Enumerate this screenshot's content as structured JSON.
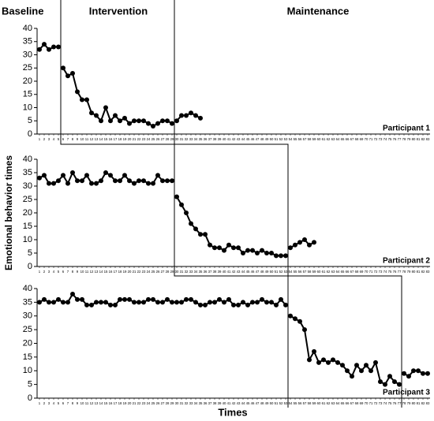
{
  "phases": [
    "Baseline",
    "Intervention",
    "Maintenance"
  ],
  "ylabel": "Emotional behavior times",
  "xlabel": "Times",
  "chart_data": [
    {
      "type": "line",
      "label": "Participant 1",
      "color": "#000000",
      "ylim": [
        0,
        40
      ],
      "yticks": [
        0,
        5,
        10,
        15,
        20,
        25,
        30,
        35,
        40
      ],
      "xlim": [
        0.5,
        83.5
      ],
      "xticks": [
        1,
        2,
        3,
        4,
        5,
        6,
        7,
        8,
        9,
        10,
        11,
        12,
        13,
        14,
        15,
        16,
        17,
        18,
        19,
        20,
        21,
        22,
        23,
        24,
        25,
        26,
        27,
        28,
        29,
        30,
        31,
        32,
        33,
        34,
        35,
        36,
        37,
        38,
        39,
        40,
        41,
        42,
        43,
        44,
        45,
        46,
        47,
        48,
        49,
        50,
        51,
        52,
        53,
        54,
        55,
        56,
        57,
        58,
        59,
        60,
        61,
        62,
        63,
        64,
        65,
        66,
        67,
        68,
        69,
        70,
        71,
        72,
        73,
        74,
        75,
        76,
        77,
        78,
        79,
        80,
        81,
        82,
        83
      ],
      "series": [
        {
          "x": [
            1,
            2,
            3,
            4,
            5
          ],
          "values": [
            32,
            34,
            32,
            33,
            33
          ]
        },
        {
          "x": [
            6,
            7,
            8,
            9,
            10,
            11,
            12,
            13,
            14,
            15,
            16,
            17,
            18,
            19,
            20,
            21,
            22,
            23,
            24,
            25,
            26,
            27,
            28,
            29
          ],
          "values": [
            25,
            22,
            23,
            16,
            13,
            13,
            8,
            7,
            5,
            10,
            5,
            7,
            5,
            6,
            4,
            5,
            5,
            5,
            4,
            3,
            4,
            5,
            5,
            4
          ]
        },
        {
          "x": [
            30,
            31,
            32,
            33,
            34,
            35
          ],
          "values": [
            5,
            7,
            7,
            8,
            7,
            6
          ]
        }
      ]
    },
    {
      "type": "line",
      "label": "Participant 2",
      "color": "#000000",
      "ylim": [
        0,
        40
      ],
      "yticks": [
        0,
        5,
        10,
        15,
        20,
        25,
        30,
        35,
        40
      ],
      "xlim": [
        0.5,
        83.5
      ],
      "xticks": [
        1,
        2,
        3,
        4,
        5,
        6,
        7,
        8,
        9,
        10,
        11,
        12,
        13,
        14,
        15,
        16,
        17,
        18,
        19,
        20,
        21,
        22,
        23,
        24,
        25,
        26,
        27,
        28,
        29,
        30,
        31,
        32,
        33,
        34,
        35,
        36,
        37,
        38,
        39,
        40,
        41,
        42,
        43,
        44,
        45,
        46,
        47,
        48,
        49,
        50,
        51,
        52,
        53,
        54,
        55,
        56,
        57,
        58,
        59,
        60,
        61,
        62,
        63,
        64,
        65,
        66,
        67,
        68,
        69,
        70,
        71,
        72,
        73,
        74,
        75,
        76,
        77,
        78,
        79,
        80,
        81,
        82,
        83
      ],
      "series": [
        {
          "x": [
            1,
            2,
            3,
            4,
            5,
            6,
            7,
            8,
            9,
            10,
            11,
            12,
            13,
            14,
            15,
            16,
            17,
            18,
            19,
            20,
            21,
            22,
            23,
            24,
            25,
            26,
            27,
            28,
            29
          ],
          "values": [
            33,
            34,
            31,
            31,
            32,
            34,
            31,
            35,
            32,
            32,
            34,
            31,
            31,
            32,
            35,
            34,
            32,
            32,
            34,
            32,
            31,
            32,
            32,
            31,
            31,
            34,
            32,
            32,
            32
          ]
        },
        {
          "x": [
            30,
            31,
            32,
            33,
            34,
            35,
            36,
            37,
            38,
            39,
            40,
            41,
            42,
            43,
            44,
            45,
            46,
            47,
            48,
            49,
            50,
            51,
            52,
            53
          ],
          "values": [
            26,
            23,
            20,
            16,
            14,
            12,
            12,
            8,
            7,
            7,
            6,
            8,
            7,
            7,
            5,
            6,
            6,
            5,
            6,
            5,
            5,
            4,
            4,
            4
          ]
        },
        {
          "x": [
            54,
            55,
            56,
            57,
            58,
            59
          ],
          "values": [
            7,
            8,
            9,
            10,
            8,
            9
          ]
        }
      ]
    },
    {
      "type": "line",
      "label": "Participant 3",
      "color": "#000000",
      "ylim": [
        0,
        40
      ],
      "yticks": [
        0,
        5,
        10,
        15,
        20,
        25,
        30,
        35,
        40
      ],
      "xlim": [
        0.5,
        83.5
      ],
      "xticks": [
        1,
        2,
        3,
        4,
        5,
        6,
        7,
        8,
        9,
        10,
        11,
        12,
        13,
        14,
        15,
        16,
        17,
        18,
        19,
        20,
        21,
        22,
        23,
        24,
        25,
        26,
        27,
        28,
        29,
        30,
        31,
        32,
        33,
        34,
        35,
        36,
        37,
        38,
        39,
        40,
        41,
        42,
        43,
        44,
        45,
        46,
        47,
        48,
        49,
        50,
        51,
        52,
        53,
        54,
        55,
        56,
        57,
        58,
        59,
        60,
        61,
        62,
        63,
        64,
        65,
        66,
        67,
        68,
        69,
        70,
        71,
        72,
        73,
        74,
        75,
        76,
        77,
        78,
        79,
        80,
        81,
        82,
        83
      ],
      "series": [
        {
          "x": [
            1,
            2,
            3,
            4,
            5,
            6,
            7,
            8,
            9,
            10,
            11,
            12,
            13,
            14,
            15,
            16,
            17,
            18,
            19,
            20,
            21,
            22,
            23,
            24,
            25,
            26,
            27,
            28,
            29,
            30,
            31,
            32,
            33,
            34,
            35,
            36,
            37,
            38,
            39,
            40,
            41,
            42,
            43,
            44,
            45,
            46,
            47,
            48,
            49,
            50,
            51,
            52,
            53
          ],
          "values": [
            35,
            36,
            35,
            35,
            36,
            35,
            35,
            38,
            36,
            36,
            34,
            34,
            35,
            35,
            35,
            34,
            34,
            36,
            36,
            36,
            35,
            35,
            35,
            36,
            36,
            35,
            35,
            36,
            35,
            35,
            35,
            36,
            36,
            35,
            34,
            34,
            35,
            35,
            36,
            35,
            36,
            34,
            34,
            35,
            34,
            35,
            35,
            36,
            35,
            35,
            34,
            36,
            34
          ]
        },
        {
          "x": [
            54,
            55,
            56,
            57,
            58,
            59,
            60,
            61,
            62,
            63,
            64,
            65,
            66,
            67,
            68,
            69,
            70,
            71,
            72,
            73,
            74,
            75,
            76,
            77
          ],
          "values": [
            30,
            29,
            28,
            25,
            14,
            17,
            13,
            14,
            13,
            14,
            13,
            12,
            10,
            8,
            12,
            10,
            12,
            10,
            13,
            6,
            5,
            8,
            6,
            5
          ]
        },
        {
          "x": [
            78,
            79,
            80,
            81,
            82,
            83
          ],
          "values": [
            9,
            8,
            10,
            10,
            9,
            9
          ]
        }
      ]
    }
  ]
}
